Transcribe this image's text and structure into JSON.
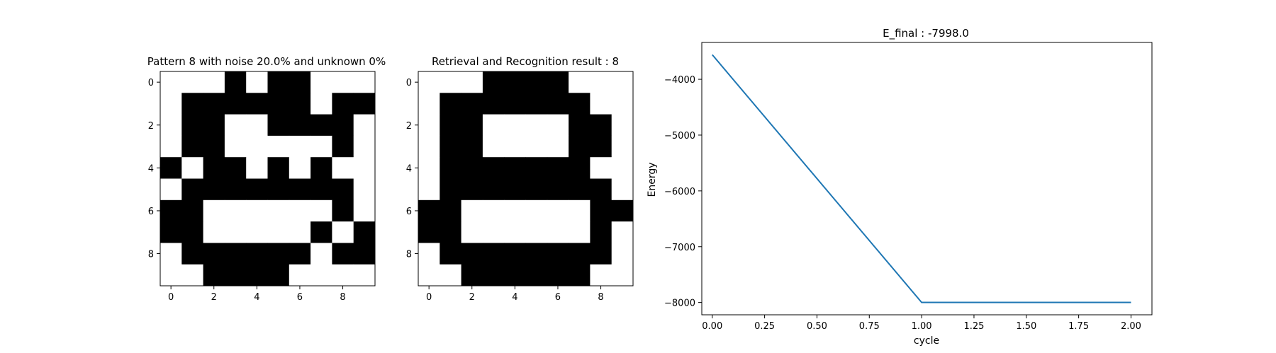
{
  "chart_data": [
    {
      "type": "heatmap",
      "title": "Pattern 8 with noise 20.0% and unknown 0%",
      "colormap": [
        "#ffffff",
        "#000000"
      ],
      "x_ticks": [
        0,
        2,
        4,
        6,
        8
      ],
      "y_ticks": [
        0,
        2,
        4,
        6,
        8
      ],
      "grid": false,
      "matrix": [
        [
          0,
          0,
          0,
          1,
          0,
          1,
          1,
          0,
          0,
          0
        ],
        [
          0,
          1,
          1,
          1,
          1,
          1,
          1,
          0,
          1,
          1
        ],
        [
          0,
          1,
          1,
          0,
          0,
          1,
          1,
          1,
          1,
          0
        ],
        [
          0,
          1,
          1,
          0,
          0,
          0,
          0,
          0,
          1,
          0
        ],
        [
          1,
          0,
          1,
          1,
          0,
          1,
          0,
          1,
          0,
          0
        ],
        [
          0,
          1,
          1,
          1,
          1,
          1,
          1,
          1,
          1,
          0
        ],
        [
          1,
          1,
          0,
          0,
          0,
          0,
          0,
          0,
          1,
          0
        ],
        [
          1,
          1,
          0,
          0,
          0,
          0,
          0,
          1,
          0,
          1
        ],
        [
          0,
          1,
          1,
          1,
          1,
          1,
          1,
          0,
          1,
          1
        ],
        [
          0,
          0,
          1,
          1,
          1,
          1,
          0,
          0,
          0,
          0
        ]
      ]
    },
    {
      "type": "heatmap",
      "title": "Retrieval and Recognition result : 8",
      "colormap": [
        "#ffffff",
        "#000000"
      ],
      "x_ticks": [
        0,
        2,
        4,
        6,
        8
      ],
      "y_ticks": [
        0,
        2,
        4,
        6,
        8
      ],
      "grid": false,
      "matrix": [
        [
          0,
          0,
          0,
          1,
          1,
          1,
          1,
          0,
          0,
          0
        ],
        [
          0,
          1,
          1,
          1,
          1,
          1,
          1,
          1,
          0,
          0
        ],
        [
          0,
          1,
          1,
          0,
          0,
          0,
          0,
          1,
          1,
          0
        ],
        [
          0,
          1,
          1,
          0,
          0,
          0,
          0,
          1,
          1,
          0
        ],
        [
          0,
          1,
          1,
          1,
          1,
          1,
          1,
          1,
          0,
          0
        ],
        [
          0,
          1,
          1,
          1,
          1,
          1,
          1,
          1,
          1,
          0
        ],
        [
          1,
          1,
          0,
          0,
          0,
          0,
          0,
          0,
          1,
          1
        ],
        [
          1,
          1,
          0,
          0,
          0,
          0,
          0,
          0,
          1,
          0
        ],
        [
          0,
          1,
          1,
          1,
          1,
          1,
          1,
          1,
          1,
          0
        ],
        [
          0,
          0,
          1,
          1,
          1,
          1,
          1,
          1,
          0,
          0
        ]
      ]
    },
    {
      "type": "line",
      "title": "E_final : -7998.0",
      "xlabel": "cycle",
      "ylabel": "Energy",
      "x": [
        0,
        1,
        2
      ],
      "series": [
        {
          "values": [
            -3560,
            -7998,
            -7998
          ],
          "color": "#1f77b4"
        }
      ],
      "xlim": [
        -0.05,
        2.1
      ],
      "ylim": [
        -8220,
        -3340
      ],
      "x_ticks": [
        0.0,
        0.25,
        0.5,
        0.75,
        1.0,
        1.25,
        1.5,
        1.75,
        2.0
      ],
      "x_tick_labels": [
        "0.00",
        "0.25",
        "0.50",
        "0.75",
        "1.00",
        "1.25",
        "1.50",
        "1.75",
        "2.00"
      ],
      "y_ticks": [
        -4000,
        -5000,
        -6000,
        -7000,
        -8000
      ],
      "y_tick_labels": [
        "−4000",
        "−5000",
        "−6000",
        "−7000",
        "−8000"
      ],
      "grid": false
    }
  ]
}
